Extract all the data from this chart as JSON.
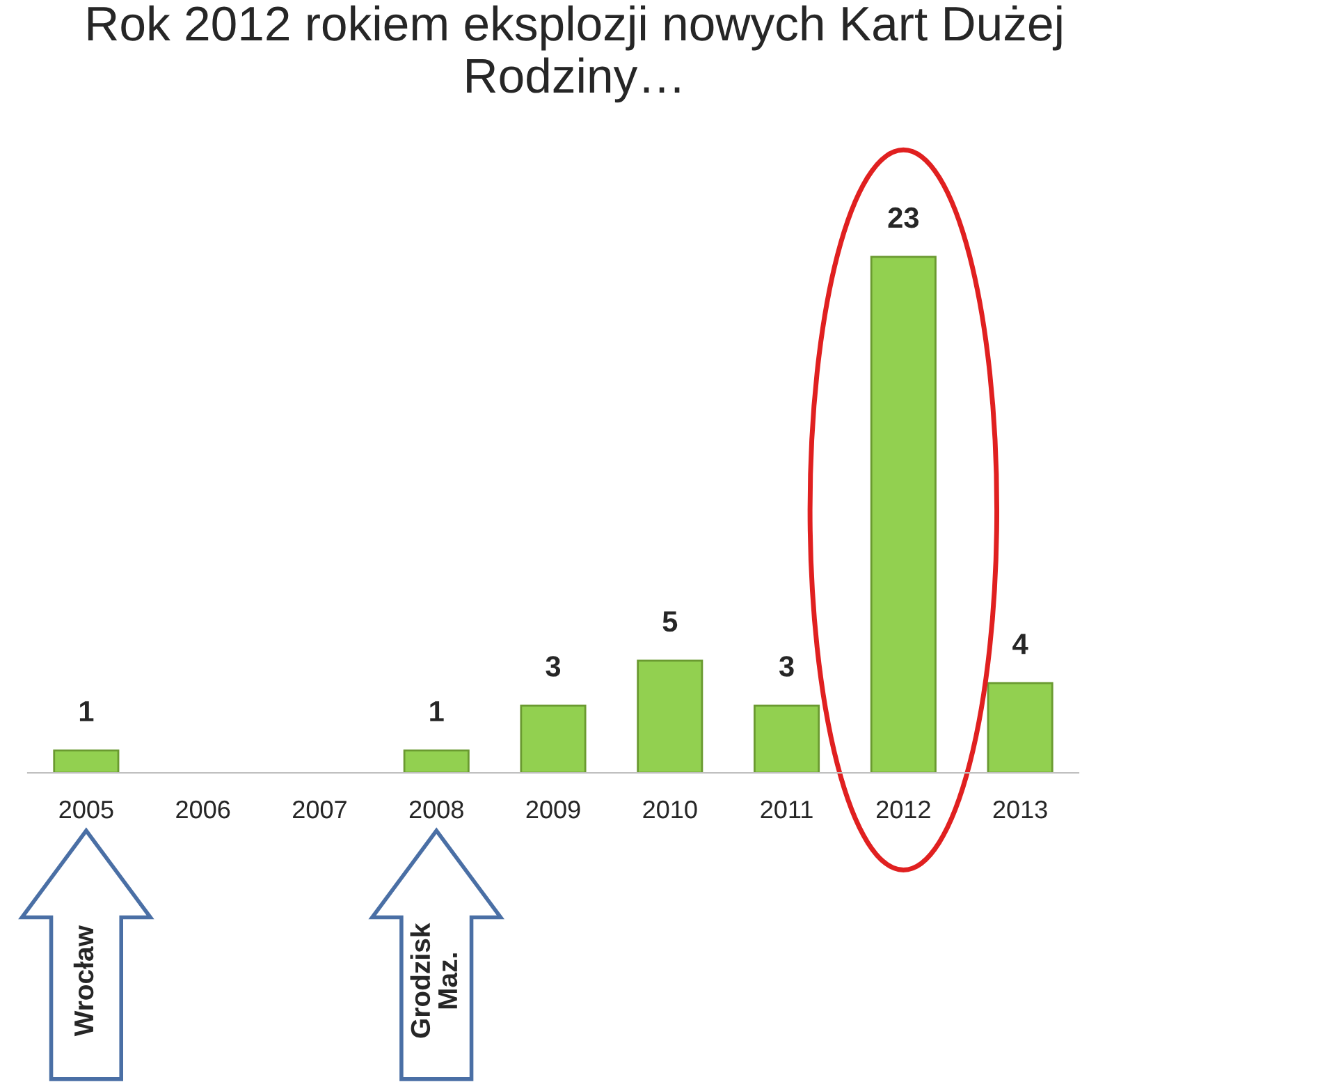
{
  "chart_data": {
    "type": "bar",
    "title": "Rok 2012 rokiem eksplozji nowych Kart Dużej Rodziny…",
    "categories": [
      "2005",
      "2006",
      "2007",
      "2008",
      "2009",
      "2010",
      "2011",
      "2012",
      "2013"
    ],
    "values": [
      1,
      null,
      null,
      1,
      3,
      5,
      3,
      23,
      4
    ],
    "color": "#92d050",
    "data_labels": true,
    "grid": false,
    "legend": false,
    "annotations": [
      "Wrocław",
      "Grodzisk Maz."
    ]
  }
}
